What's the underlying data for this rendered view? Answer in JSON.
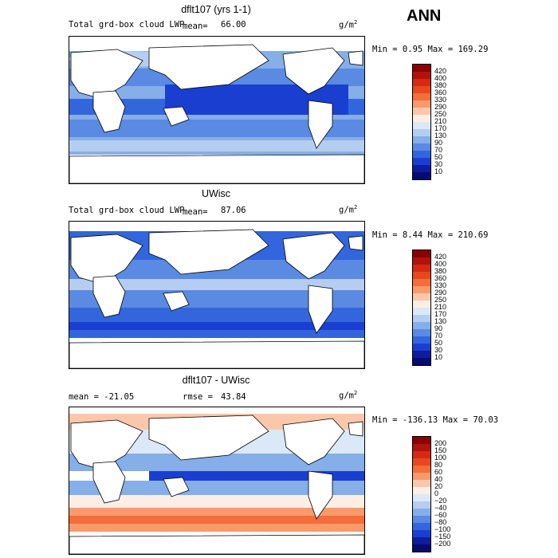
{
  "season": "ANN",
  "panels": [
    {
      "title": "dflt107 (yrs 1-1)",
      "left_label": "Total grd-box cloud LWP",
      "mean_label": "mean=",
      "mean_value": "66.00",
      "units": "g/m",
      "units_sup": "2",
      "minmax": "Min =   0.95 Max = 169.29",
      "colorbar": {
        "levels": [
          "420",
          "400",
          "380",
          "360",
          "330",
          "290",
          "250",
          "210",
          "170",
          "130",
          "90",
          "70",
          "50",
          "30",
          "10"
        ],
        "colors": [
          "#8b0000",
          "#b0130a",
          "#d42a12",
          "#e8481f",
          "#f46d3a",
          "#f89a6c",
          "#fbc7aa",
          "#fdeee4",
          "#dbe8f8",
          "#b5cdf0",
          "#86aee8",
          "#5a8ae2",
          "#3366dd",
          "#1a3fd0",
          "#0c1d9e",
          "#070b6e"
        ]
      }
    },
    {
      "title": "UWisc",
      "left_label": "Total grd-box cloud LWP",
      "mean_label": "mean=",
      "mean_value": "87.06",
      "units": "g/m",
      "units_sup": "2",
      "minmax": "Min =   8.44 Max = 210.69",
      "colorbar": {
        "levels": [
          "420",
          "400",
          "380",
          "360",
          "330",
          "290",
          "250",
          "210",
          "170",
          "130",
          "90",
          "70",
          "50",
          "30",
          "10"
        ],
        "colors": [
          "#8b0000",
          "#b0130a",
          "#d42a12",
          "#e8481f",
          "#f46d3a",
          "#f89a6c",
          "#fbc7aa",
          "#fdeee4",
          "#dbe8f8",
          "#b5cdf0",
          "#86aee8",
          "#5a8ae2",
          "#3366dd",
          "#1a3fd0",
          "#0c1d9e",
          "#070b6e"
        ]
      }
    },
    {
      "title": "dflt107 - UWisc",
      "left_label": "mean = -21.05",
      "mean_label": "rmse =",
      "mean_value": "43.84",
      "units": "g/m",
      "units_sup": "2",
      "minmax": "Min = -136.13 Max =  70.03",
      "colorbar": {
        "levels": [
          "200",
          "150",
          "100",
          "80",
          "60",
          "40",
          "20",
          "0",
          "−20",
          "−40",
          "−60",
          "−80",
          "−100",
          "−150",
          "−200"
        ],
        "colors": [
          "#8b0000",
          "#b0130a",
          "#d42a12",
          "#e8481f",
          "#f46d3a",
          "#f89a6c",
          "#fbc7aa",
          "#fdeee4",
          "#dbe8f8",
          "#b5cdf0",
          "#86aee8",
          "#5a8ae2",
          "#3366dd",
          "#1a3fd0",
          "#0c1d9e",
          "#070b6e"
        ]
      }
    }
  ],
  "chart_data": [
    {
      "type": "heatmap",
      "title": "dflt107 (yrs 1-1)",
      "variable": "Total grd-box cloud LWP",
      "units": "g/m2",
      "mean": 66.0,
      "min": 0.95,
      "max": 169.29,
      "contour_levels": [
        10,
        30,
        50,
        70,
        90,
        130,
        170,
        210,
        250,
        290,
        330,
        360,
        380,
        400,
        420
      ]
    },
    {
      "type": "heatmap",
      "title": "UWisc",
      "variable": "Total grd-box cloud LWP",
      "units": "g/m2",
      "mean": 87.06,
      "min": 8.44,
      "max": 210.69,
      "contour_levels": [
        10,
        30,
        50,
        70,
        90,
        130,
        170,
        210,
        250,
        290,
        330,
        360,
        380,
        400,
        420
      ]
    },
    {
      "type": "heatmap",
      "title": "dflt107 - UWisc",
      "units": "g/m2",
      "mean": -21.05,
      "rmse": 43.84,
      "min": -136.13,
      "max": 70.03,
      "contour_levels": [
        -200,
        -150,
        -100,
        -80,
        -60,
        -40,
        -20,
        0,
        20,
        40,
        60,
        80,
        100,
        150,
        200
      ]
    }
  ]
}
